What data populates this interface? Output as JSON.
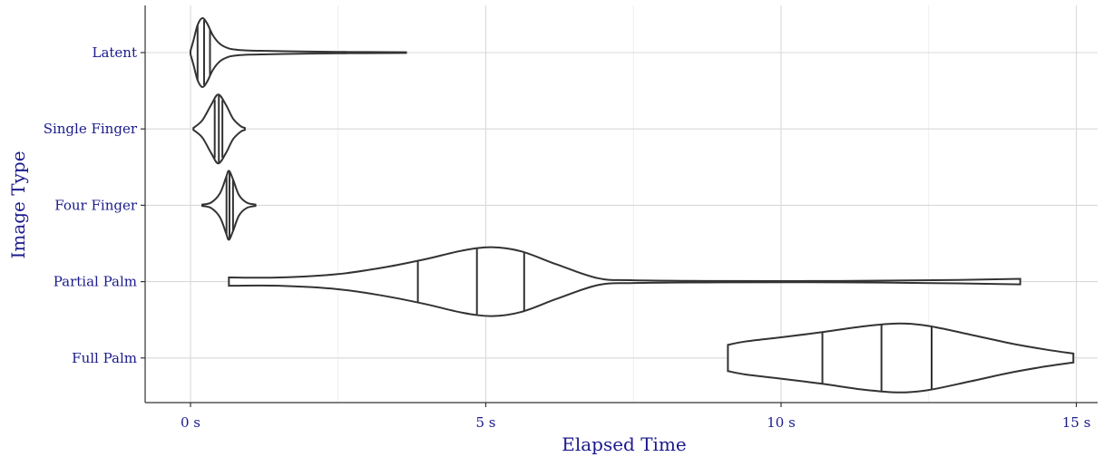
{
  "chart_data": {
    "type": "violin",
    "xlabel": "Elapsed Time",
    "ylabel": "Image Type",
    "xlim": [
      -0.15,
      15.3
    ],
    "x_ticks": [
      {
        "value": 0,
        "label": "0 s"
      },
      {
        "value": 5,
        "label": "5 s"
      },
      {
        "value": 10,
        "label": "10 s"
      },
      {
        "value": 15,
        "label": "15 s"
      }
    ],
    "x_minor_ticks": [
      2.5,
      7.5,
      12.5
    ],
    "grid": true,
    "categories": [
      "Latent",
      "Single Finger",
      "Four Finger",
      "Partial Palm",
      "Full Palm"
    ],
    "series": [
      {
        "category": "Latent",
        "quantiles": [
          0.12,
          0.23,
          0.33
        ],
        "profile": [
          [
            0.0,
            0.05
          ],
          [
            0.05,
            0.35
          ],
          [
            0.12,
            0.8
          ],
          [
            0.2,
            1.0
          ],
          [
            0.28,
            0.85
          ],
          [
            0.38,
            0.5
          ],
          [
            0.5,
            0.25
          ],
          [
            0.65,
            0.12
          ],
          [
            0.8,
            0.08
          ],
          [
            1.0,
            0.06
          ],
          [
            1.3,
            0.05
          ],
          [
            1.6,
            0.04
          ],
          [
            2.0,
            0.03
          ],
          [
            2.5,
            0.02
          ],
          [
            3.0,
            0.015
          ],
          [
            3.65,
            0.01
          ]
        ]
      },
      {
        "category": "Single Finger",
        "quantiles": [
          0.41,
          0.48,
          0.54
        ],
        "profile": [
          [
            0.05,
            0.03
          ],
          [
            0.2,
            0.25
          ],
          [
            0.35,
            0.7
          ],
          [
            0.47,
            1.0
          ],
          [
            0.6,
            0.7
          ],
          [
            0.72,
            0.3
          ],
          [
            0.85,
            0.08
          ],
          [
            0.92,
            0.03
          ]
        ]
      },
      {
        "category": "Four Finger",
        "quantiles": [
          0.61,
          0.66,
          0.72
        ],
        "profile": [
          [
            0.2,
            0.02
          ],
          [
            0.35,
            0.08
          ],
          [
            0.5,
            0.35
          ],
          [
            0.6,
            0.8
          ],
          [
            0.65,
            1.0
          ],
          [
            0.72,
            0.75
          ],
          [
            0.82,
            0.3
          ],
          [
            0.95,
            0.08
          ],
          [
            1.1,
            0.02
          ]
        ]
      },
      {
        "category": "Partial Palm",
        "quantiles": [
          3.85,
          4.85,
          5.65
        ],
        "profile": [
          [
            0.65,
            0.12
          ],
          [
            1.5,
            0.12
          ],
          [
            2.5,
            0.22
          ],
          [
            3.3,
            0.42
          ],
          [
            4.0,
            0.66
          ],
          [
            4.6,
            0.9
          ],
          [
            5.1,
            1.0
          ],
          [
            5.6,
            0.88
          ],
          [
            6.2,
            0.5
          ],
          [
            6.9,
            0.1
          ],
          [
            7.5,
            0.04
          ],
          [
            9.0,
            0.02
          ],
          [
            11.0,
            0.02
          ],
          [
            13.0,
            0.05
          ],
          [
            14.05,
            0.08
          ]
        ]
      },
      {
        "category": "Full Palm",
        "quantiles": [
          10.7,
          11.7,
          12.55
        ],
        "profile": [
          [
            9.1,
            0.38
          ],
          [
            9.4,
            0.48
          ],
          [
            10.0,
            0.6
          ],
          [
            10.7,
            0.75
          ],
          [
            11.4,
            0.92
          ],
          [
            12.0,
            1.0
          ],
          [
            12.5,
            0.93
          ],
          [
            13.2,
            0.68
          ],
          [
            13.9,
            0.42
          ],
          [
            14.5,
            0.24
          ],
          [
            14.95,
            0.13
          ]
        ]
      }
    ]
  }
}
